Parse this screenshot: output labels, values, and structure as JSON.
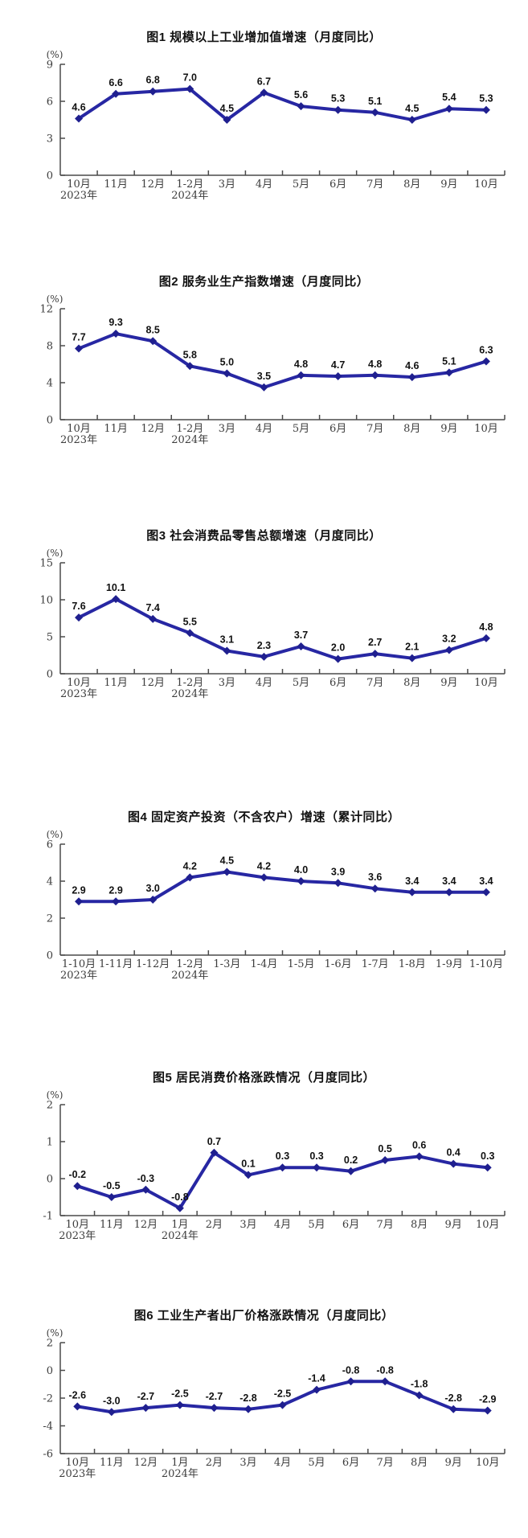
{
  "page": {
    "background": "#ffffff"
  },
  "styles": {
    "line_color": "#2727A3",
    "marker_color": "#1F1F8F",
    "axis_color": "#4a4a4a",
    "tick_label_color": "#3d3d3d",
    "data_label_color": "#111111"
  },
  "chart_data": [
    {
      "id": "fig1",
      "type": "line",
      "title": "图1  规模以上工业增加值增速（月度同比）",
      "unit": "(%)",
      "ylim": [
        0,
        9
      ],
      "yticks": [
        0,
        3,
        6,
        9
      ],
      "legend": "none",
      "grid": false,
      "categories": [
        [
          "10月",
          "2023年"
        ],
        [
          "11月"
        ],
        [
          "12月"
        ],
        [
          "1-2月",
          "2024年"
        ],
        [
          "3月"
        ],
        [
          "4月"
        ],
        [
          "5月"
        ],
        [
          "6月"
        ],
        [
          "7月"
        ],
        [
          "8月"
        ],
        [
          "9月"
        ],
        [
          "10月"
        ]
      ],
      "values": [
        4.6,
        6.6,
        6.8,
        7.0,
        4.5,
        6.7,
        5.6,
        5.3,
        5.1,
        4.5,
        5.4,
        5.3
      ]
    },
    {
      "id": "fig2",
      "type": "line",
      "title": "图2  服务业生产指数增速（月度同比）",
      "unit": "(%)",
      "ylim": [
        0,
        12
      ],
      "yticks": [
        0,
        4,
        8,
        12
      ],
      "legend": "none",
      "grid": false,
      "categories": [
        [
          "10月",
          "2023年"
        ],
        [
          "11月"
        ],
        [
          "12月"
        ],
        [
          "1-2月",
          "2024年"
        ],
        [
          "3月"
        ],
        [
          "4月"
        ],
        [
          "5月"
        ],
        [
          "6月"
        ],
        [
          "7月"
        ],
        [
          "8月"
        ],
        [
          "9月"
        ],
        [
          "10月"
        ]
      ],
      "values": [
        7.7,
        9.3,
        8.5,
        5.8,
        5.0,
        3.5,
        4.8,
        4.7,
        4.8,
        4.6,
        5.1,
        6.3
      ]
    },
    {
      "id": "fig3",
      "type": "line",
      "title": "图3  社会消费品零售总额增速（月度同比）",
      "unit": "(%)",
      "ylim": [
        0,
        15
      ],
      "yticks": [
        0,
        5,
        10,
        15
      ],
      "legend": "none",
      "grid": false,
      "categories": [
        [
          "10月",
          "2023年"
        ],
        [
          "11月"
        ],
        [
          "12月"
        ],
        [
          "1-2月",
          "2024年"
        ],
        [
          "3月"
        ],
        [
          "4月"
        ],
        [
          "5月"
        ],
        [
          "6月"
        ],
        [
          "7月"
        ],
        [
          "8月"
        ],
        [
          "9月"
        ],
        [
          "10月"
        ]
      ],
      "values": [
        7.6,
        10.1,
        7.4,
        5.5,
        3.1,
        2.3,
        3.7,
        2.0,
        2.7,
        2.1,
        3.2,
        4.8
      ]
    },
    {
      "id": "fig4",
      "type": "line",
      "title": "图4  固定资产投资（不含农户）增速（累计同比）",
      "unit": "(%)",
      "ylim": [
        0,
        6
      ],
      "yticks": [
        0,
        2,
        4,
        6
      ],
      "legend": "none",
      "grid": false,
      "categories": [
        [
          "1-10月",
          "2023年"
        ],
        [
          "1-11月"
        ],
        [
          "1-12月"
        ],
        [
          "1-2月",
          "2024年"
        ],
        [
          "1-3月"
        ],
        [
          "1-4月"
        ],
        [
          "1-5月"
        ],
        [
          "1-6月"
        ],
        [
          "1-7月"
        ],
        [
          "1-8月"
        ],
        [
          "1-9月"
        ],
        [
          "1-10月"
        ]
      ],
      "values": [
        2.9,
        2.9,
        3.0,
        4.2,
        4.5,
        4.2,
        4.0,
        3.9,
        3.6,
        3.4,
        3.4,
        3.4
      ]
    },
    {
      "id": "fig5",
      "type": "line",
      "title": "图5  居民消费价格涨跌情况（月度同比）",
      "unit": "(%)",
      "ylim": [
        -1,
        2
      ],
      "yticks": [
        -1,
        0,
        1,
        2
      ],
      "legend": "none",
      "grid": false,
      "categories": [
        [
          "10月",
          "2023年"
        ],
        [
          "11月"
        ],
        [
          "12月"
        ],
        [
          "1月",
          "2024年"
        ],
        [
          "2月"
        ],
        [
          "3月"
        ],
        [
          "4月"
        ],
        [
          "5月"
        ],
        [
          "6月"
        ],
        [
          "7月"
        ],
        [
          "8月"
        ],
        [
          "9月"
        ],
        [
          "10月"
        ]
      ],
      "values": [
        -0.2,
        -0.5,
        -0.3,
        -0.8,
        0.7,
        0.1,
        0.3,
        0.3,
        0.2,
        0.5,
        0.6,
        0.4,
        0.3
      ]
    },
    {
      "id": "fig6",
      "type": "line",
      "title": "图6  工业生产者出厂价格涨跌情况（月度同比）",
      "unit": "(%)",
      "ylim": [
        -6,
        2
      ],
      "yticks": [
        -6,
        -4,
        -2,
        0,
        2
      ],
      "legend": "none",
      "grid": false,
      "categories": [
        [
          "10月",
          "2023年"
        ],
        [
          "11月"
        ],
        [
          "12月"
        ],
        [
          "1月",
          "2024年"
        ],
        [
          "2月"
        ],
        [
          "3月"
        ],
        [
          "4月"
        ],
        [
          "5月"
        ],
        [
          "6月"
        ],
        [
          "7月"
        ],
        [
          "8月"
        ],
        [
          "9月"
        ],
        [
          "10月"
        ]
      ],
      "values": [
        -2.6,
        -3.0,
        -2.7,
        -2.5,
        -2.7,
        -2.8,
        -2.5,
        -1.4,
        -0.8,
        -0.8,
        -1.8,
        -2.8,
        -2.9
      ]
    }
  ]
}
